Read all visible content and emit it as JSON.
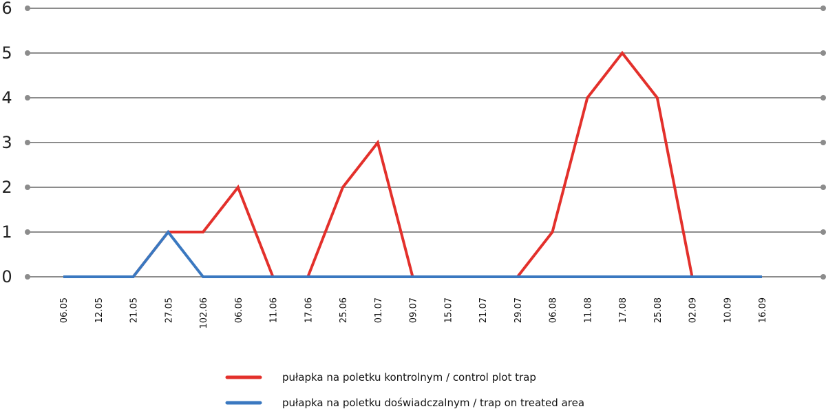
{
  "chart_data": {
    "type": "line",
    "title": "",
    "xlabel": "",
    "ylabel": "",
    "ylim": [
      0,
      6
    ],
    "yticks": [
      "0",
      "1",
      "2",
      "3",
      "4",
      "5",
      "6"
    ],
    "grid": true,
    "legend_position": "bottom-center",
    "categories": [
      "06.05",
      "12.05",
      "21.05",
      "27.05",
      "102.06",
      "06.06",
      "11.06",
      "17.06",
      "25.06",
      "01.07",
      "09.07",
      "15.07",
      "21.07",
      "29.07",
      "06.08",
      "11.08",
      "17.08",
      "25.08",
      "02.09",
      "10.09",
      "16.09"
    ],
    "series": [
      {
        "name": "pułapka na poletku kontrolnym / control plot trap",
        "color": "#e3302b",
        "values": [
          0,
          0,
          0,
          1,
          1,
          2,
          0,
          0,
          2,
          3,
          0,
          0,
          0,
          0,
          1,
          4,
          5,
          4,
          0,
          0,
          0
        ]
      },
      {
        "name": "pułapka na poletku doświadczalnym / trap on treated area",
        "color": "#3a78c0",
        "values": [
          0,
          0,
          0,
          1,
          0,
          0,
          0,
          0,
          0,
          0,
          0,
          0,
          0,
          0,
          0,
          0,
          0,
          0,
          0,
          0,
          0
        ]
      }
    ]
  }
}
